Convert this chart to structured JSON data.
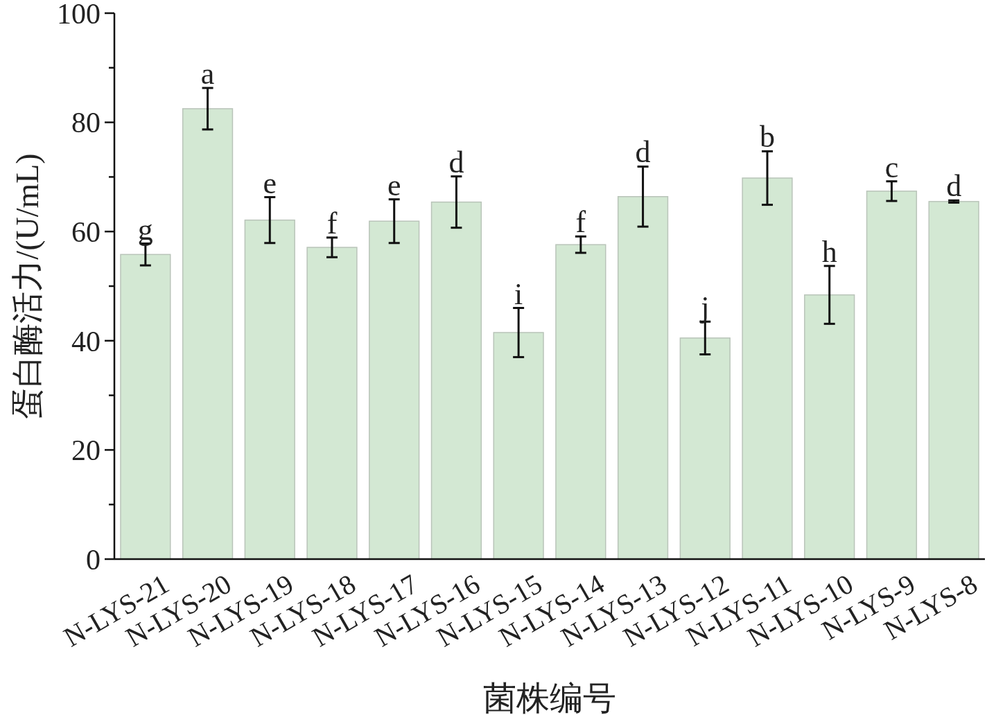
{
  "chart_data": {
    "type": "bar",
    "xlabel": "菌株编号",
    "ylabel": "蛋白酶活力/(U/mL)",
    "categories": [
      "N-LYS-21",
      "N-LYS-20",
      "N-LYS-19",
      "N-LYS-18",
      "N-LYS-17",
      "N-LYS-16",
      "N-LYS-15",
      "N-LYS-14",
      "N-LYS-13",
      "N-LYS-12",
      "N-LYS-11",
      "N-LYS-10",
      "N-LYS-9",
      "N-LYS-8"
    ],
    "values": [
      55.8,
      82.5,
      62.1,
      57.1,
      61.9,
      65.4,
      41.5,
      57.6,
      66.4,
      40.5,
      69.8,
      48.4,
      67.4,
      65.5
    ],
    "errors": [
      2,
      3.8,
      4.2,
      1.8,
      4,
      4.7,
      4.5,
      1.5,
      5.5,
      3,
      4.9,
      5.3,
      1.8,
      0.2
    ],
    "color": "#d3e8d3",
    "ylim": [
      0,
      100
    ],
    "yticks": [
      0,
      {
        "value": 10,
        "label": null
      },
      20,
      {
        "value": 30,
        "label": null
      },
      40,
      {
        "value": 50,
        "label": null
      },
      60,
      {
        "value": 70,
        "label": null
      },
      80,
      {
        "value": 90,
        "label": null
      },
      100
    ],
    "annotations": [
      {
        "text": "g",
        "x": "N-LYS-21",
        "y": 55.8
      },
      {
        "text": "a",
        "x": "N-LYS-20",
        "y": 82.5
      },
      {
        "text": "e",
        "x": "N-LYS-19",
        "y": 62.1
      },
      {
        "text": "f",
        "x": "N-LYS-18",
        "y": 57.1
      },
      {
        "text": "e",
        "x": "N-LYS-17",
        "y": 61.9
      },
      {
        "text": "d",
        "x": "N-LYS-16",
        "y": 65.4
      },
      {
        "text": "i",
        "x": "N-LYS-15",
        "y": 41.5
      },
      {
        "text": "f",
        "x": "N-LYS-14",
        "y": 57.6
      },
      {
        "text": "d",
        "x": "N-LYS-13",
        "y": 66.4
      },
      {
        "text": "j",
        "x": "N-LYS-12",
        "y": 40.5
      },
      {
        "text": "b",
        "x": "N-LYS-11",
        "y": 69.8
      },
      {
        "text": "h",
        "x": "N-LYS-10",
        "y": 48.4
      },
      {
        "text": "c",
        "x": "N-LYS-9",
        "y": 67.4
      },
      {
        "text": "d",
        "x": "N-LYS-8",
        "y": 65.5
      }
    ],
    "grid": false
  }
}
